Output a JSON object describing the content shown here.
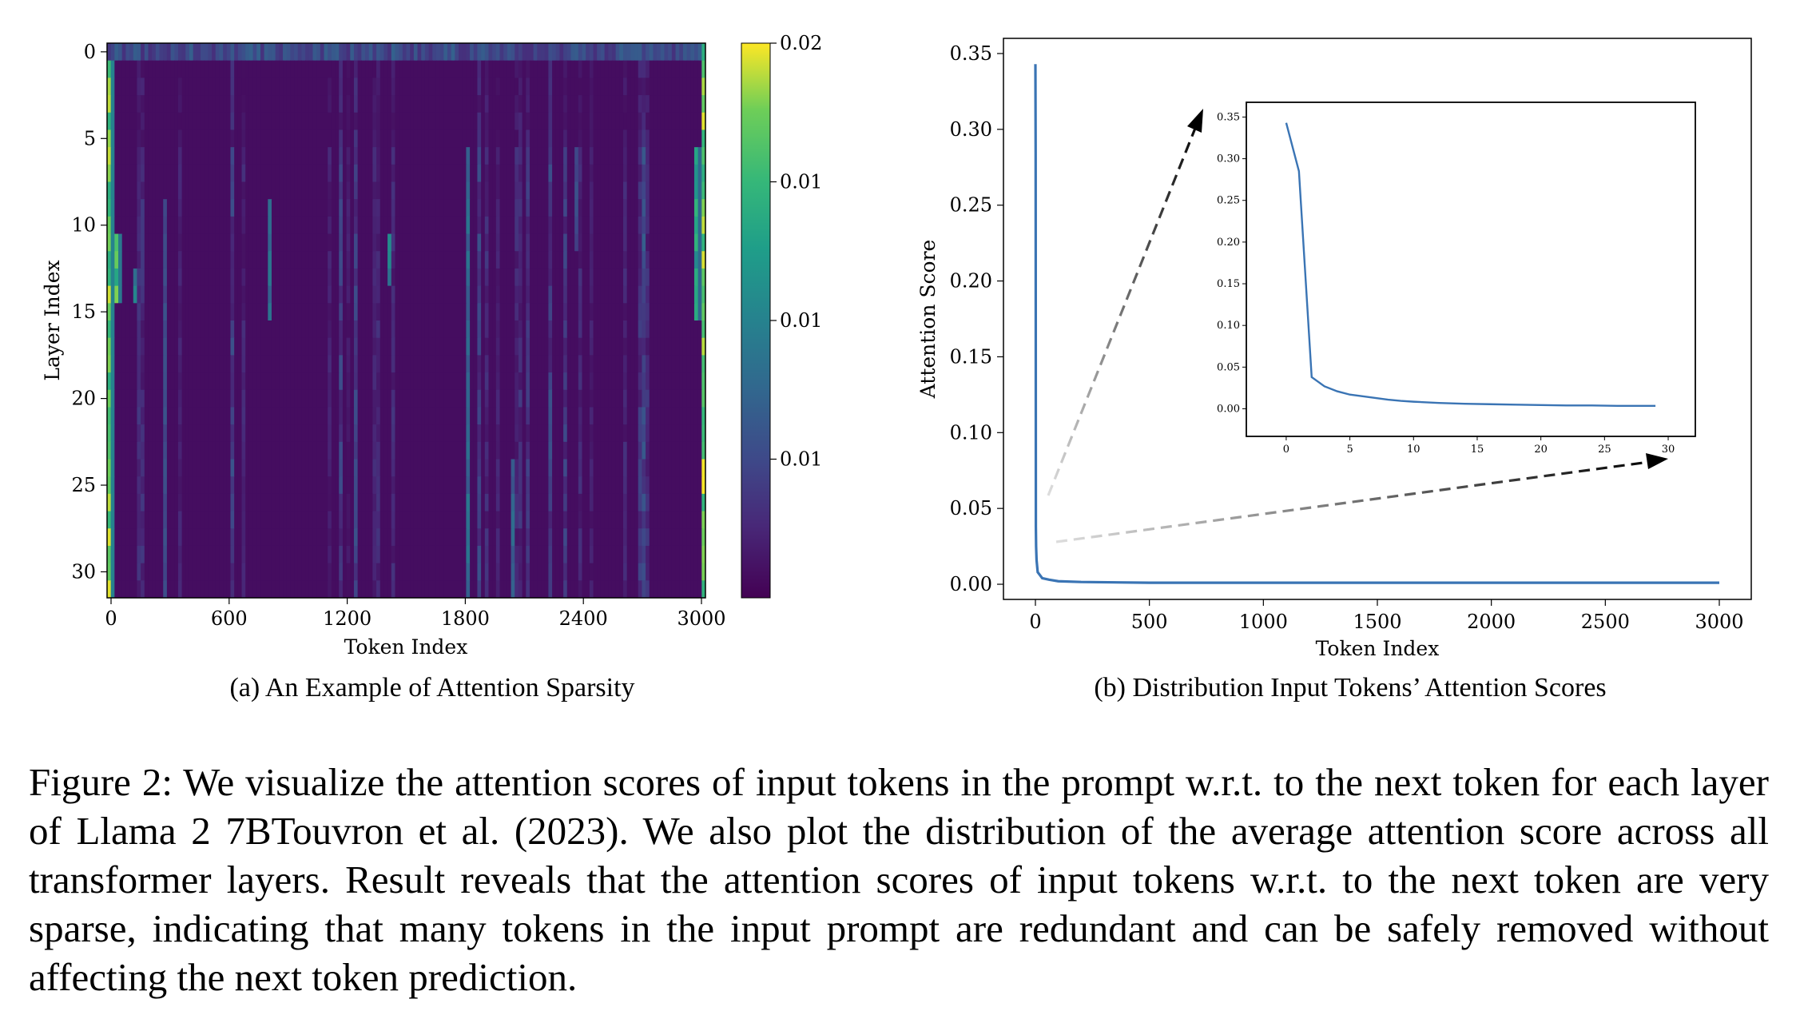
{
  "chart_data": [
    {
      "type": "heatmap",
      "xlabel": "Token Index",
      "ylabel": "Layer Index",
      "x_ticks": [
        "0",
        "600",
        "1200",
        "1800",
        "2400",
        "3000"
      ],
      "x_tick_values": [
        0,
        600,
        1200,
        1800,
        2400,
        3000
      ],
      "y_ticks": [
        "0",
        "5",
        "10",
        "15",
        "20",
        "25",
        "30"
      ],
      "y_tick_values": [
        0,
        5,
        10,
        15,
        20,
        25,
        30
      ],
      "xlim": [
        0,
        3000
      ],
      "layers": 32,
      "colorbar": {
        "ticks": [
          "0.02",
          "0.01",
          "0.01",
          "0.01"
        ],
        "tick_values": [
          0.02,
          0.015,
          0.01,
          0.005
        ],
        "range": [
          0,
          0.02
        ],
        "colormap": "viridis"
      },
      "background_value": 0.0008,
      "column_features": [
        {
          "token": 0,
          "value": 0.02,
          "layers": [
            1,
            31
          ]
        },
        {
          "token": 30,
          "value": 0.018,
          "layers": [
            11,
            14
          ]
        },
        {
          "token": 130,
          "value": 0.011,
          "layers": [
            13,
            14
          ]
        },
        {
          "token": 290,
          "value": 0.006,
          "layers": [
            9,
            31
          ]
        },
        {
          "token": 820,
          "value": 0.009,
          "layers": [
            9,
            15
          ]
        },
        {
          "token": 1420,
          "value": 0.011,
          "layers": [
            11,
            13
          ]
        },
        {
          "token": 1810,
          "value": 0.009,
          "layers": [
            6,
            31
          ]
        },
        {
          "token": 2040,
          "value": 0.008,
          "layers": [
            24,
            31
          ]
        },
        {
          "token": 2360,
          "value": 0.006,
          "layers": [
            6,
            11
          ]
        },
        {
          "token": 2960,
          "value": 0.015,
          "layers": [
            6,
            15
          ]
        },
        {
          "token": 3000,
          "value": 0.02,
          "layers": [
            0,
            31
          ]
        }
      ]
    },
    {
      "type": "line",
      "xlabel": "Token Index",
      "ylabel": "Attention Score",
      "xlim": [
        0,
        3000
      ],
      "ylim": [
        -0.01,
        0.36
      ],
      "x_ticks": [
        "0",
        "500",
        "1000",
        "1500",
        "2000",
        "2500",
        "3000"
      ],
      "x_tick_values": [
        0,
        500,
        1000,
        1500,
        2000,
        2500,
        3000
      ],
      "y_ticks": [
        "0.00",
        "0.05",
        "0.10",
        "0.15",
        "0.20",
        "0.25",
        "0.30",
        "0.35"
      ],
      "y_tick_values": [
        0,
        0.05,
        0.1,
        0.15,
        0.2,
        0.25,
        0.3,
        0.35
      ],
      "color": "#3a74b4",
      "x": [
        0,
        1,
        2,
        3,
        5,
        10,
        30,
        60,
        100,
        200,
        500,
        1000,
        1500,
        2000,
        2500,
        3000
      ],
      "y": [
        0.343,
        0.285,
        0.038,
        0.025,
        0.016,
        0.008,
        0.004,
        0.003,
        0.002,
        0.0015,
        0.001,
        0.001,
        0.001,
        0.001,
        0.001,
        0.001
      ]
    },
    {
      "type": "line",
      "role": "inset",
      "xlim": [
        -1.5,
        30.5
      ],
      "ylim": [
        -0.012,
        0.36
      ],
      "x_ticks": [
        "0",
        "5",
        "10",
        "15",
        "20",
        "25",
        "30"
      ],
      "x_tick_values": [
        0,
        5,
        10,
        15,
        20,
        25,
        30
      ],
      "y_ticks": [
        "0.00",
        "0.05",
        "0.10",
        "0.15",
        "0.20",
        "0.25",
        "0.30",
        "0.35"
      ],
      "y_tick_values": [
        0,
        0.05,
        0.1,
        0.15,
        0.2,
        0.25,
        0.3,
        0.35
      ],
      "color": "#3a74b4",
      "x": [
        0,
        1,
        2,
        3,
        4,
        5,
        6,
        7,
        8,
        9,
        10,
        12,
        14,
        16,
        18,
        20,
        22,
        24,
        26,
        28,
        29
      ],
      "y": [
        0.343,
        0.285,
        0.038,
        0.027,
        0.021,
        0.017,
        0.015,
        0.013,
        0.011,
        0.0095,
        0.0085,
        0.007,
        0.006,
        0.0055,
        0.005,
        0.0045,
        0.004,
        0.004,
        0.0035,
        0.0035,
        0.0035
      ]
    }
  ],
  "subcaptions": {
    "a": "(a) An Example of Attention Sparsity",
    "b": "(b) Distribution Input Tokens’ Attention Scores"
  },
  "caption": "Figure 2: We visualize the attention scores of input tokens in the prompt w.r.t. to the next token for each layer of Llama 2 7BTouvron et al. (2023). We also plot the distribution of the average attention score across all transformer layers. Result reveals that the attention scores of input tokens w.r.t. to the next token are very sparse, indicating that many tokens in the input prompt are redundant and can be safely removed without affecting the next token prediction."
}
